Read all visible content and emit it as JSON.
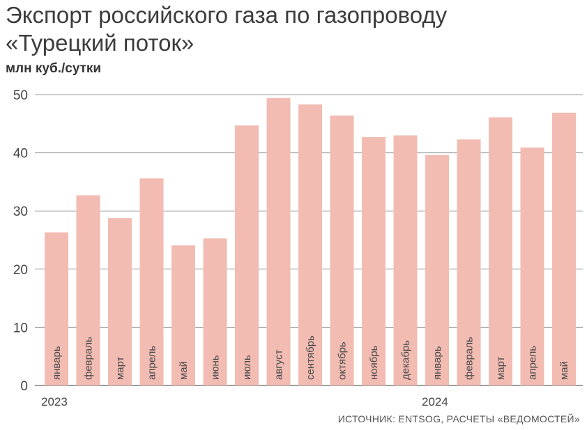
{
  "chart_data": {
    "type": "bar",
    "title": "Экспорт российского газа по газопроводу «Турецкий поток»",
    "units": "млн куб./сутки",
    "categories": [
      "январь",
      "февраль",
      "март",
      "апрель",
      "май",
      "июнь",
      "июль",
      "август",
      "сентябрь",
      "октябрь",
      "ноябрь",
      "декабрь",
      "январь",
      "февраль",
      "март",
      "апрель",
      "май"
    ],
    "years": [
      {
        "label": "2023",
        "start_index": 0
      },
      {
        "label": "2024",
        "start_index": 12
      }
    ],
    "values": [
      26.3,
      32.7,
      28.8,
      35.6,
      24.1,
      25.3,
      44.7,
      49.4,
      48.3,
      46.4,
      42.7,
      43.0,
      39.6,
      42.3,
      46.1,
      40.9,
      46.9
    ],
    "ylim": [
      0,
      50
    ],
    "yticks": [
      0,
      10,
      20,
      30,
      40,
      50
    ],
    "grid": true,
    "bar_color": "#f2bcb2",
    "grid_color": "#9a9a9a",
    "source": "ИСТОЧНИК: ENTSOG, РАСЧЕТЫ «ВЕДОМОСТЕЙ»"
  }
}
